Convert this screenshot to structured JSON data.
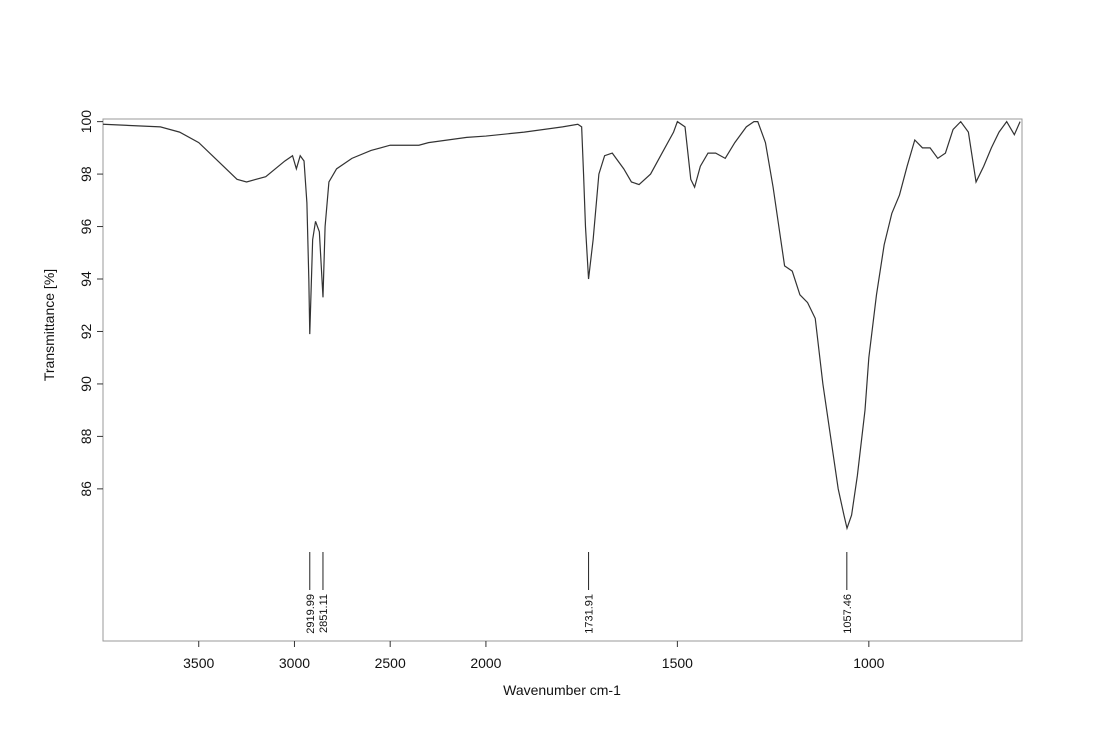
{
  "chart_data": {
    "type": "line",
    "x_label": "Wavenumber cm-1",
    "y_label": "Transmittance [%]",
    "x": [
      4000,
      3700,
      3600,
      3500,
      3400,
      3300,
      3250,
      3150,
      3050,
      3010,
      2990,
      2970,
      2950,
      2935,
      2925,
      2920,
      2905,
      2890,
      2870,
      2851,
      2840,
      2820,
      2780,
      2700,
      2600,
      2500,
      2350,
      2300,
      2100,
      2000,
      1900,
      1800,
      1760,
      1750,
      1745,
      1740,
      1732,
      1720,
      1705,
      1690,
      1670,
      1640,
      1620,
      1600,
      1570,
      1540,
      1510,
      1500,
      1480,
      1465,
      1455,
      1440,
      1420,
      1400,
      1375,
      1350,
      1320,
      1300,
      1290,
      1270,
      1250,
      1230,
      1220,
      1200,
      1180,
      1160,
      1140,
      1120,
      1100,
      1080,
      1065,
      1057,
      1045,
      1030,
      1010,
      1000,
      980,
      960,
      940,
      920,
      900,
      880,
      860,
      840,
      820,
      800,
      780,
      760,
      740,
      720,
      700,
      680,
      660,
      640,
      620,
      605
    ],
    "values": [
      99.9,
      99.8,
      99.6,
      99.2,
      98.5,
      97.8,
      97.7,
      97.9,
      98.5,
      98.7,
      98.2,
      98.7,
      98.5,
      96.9,
      94,
      91.9,
      95.5,
      96.2,
      95.8,
      93.3,
      96,
      97.7,
      98.2,
      98.6,
      98.9,
      99.1,
      99.1,
      99.2,
      99.4,
      99.45,
      99.6,
      99.8,
      99.9,
      99.8,
      98,
      96,
      94,
      95.5,
      98,
      98.7,
      98.8,
      98.2,
      97.7,
      97.6,
      98,
      98.8,
      99.6,
      100,
      99.8,
      97.8,
      97.5,
      98.3,
      98.8,
      98.8,
      98.6,
      99.2,
      99.8,
      100,
      100,
      99.2,
      97.5,
      95.5,
      94.5,
      94.3,
      93.4,
      93.1,
      92.5,
      90,
      88,
      86,
      85,
      84.5,
      85,
      86.5,
      89,
      91,
      93.4,
      95.3,
      96.5,
      97.2,
      98.3,
      99.3,
      99,
      99,
      98.6,
      98.8,
      99.7,
      100,
      99.6,
      97.7,
      98.3,
      99,
      99.6,
      100,
      99.5,
      100
    ],
    "color": "#333333",
    "xlim": [
      4000,
      600
    ],
    "x_break": {
      "at": 2000,
      "stretch": 2
    },
    "xticks": [
      3500,
      3000,
      2500,
      2000,
      1500,
      1000
    ],
    "ylim": [
      80.2,
      100.1
    ],
    "yticks": [
      86,
      88,
      90,
      92,
      94,
      96,
      98,
      100
    ],
    "peak_labels": [
      2919.99,
      2851.11,
      1731.91,
      1057.46
    ]
  }
}
